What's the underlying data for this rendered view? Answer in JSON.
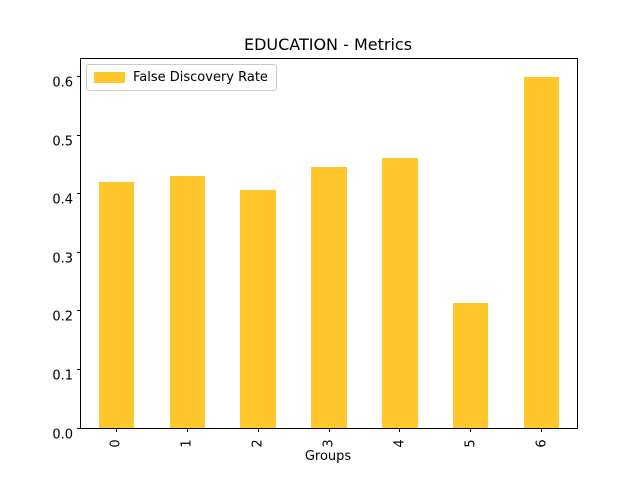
{
  "chart_data": {
    "type": "bar",
    "title": "EDUCATION - Metrics",
    "xlabel": "Groups",
    "ylabel": "",
    "categories": [
      "0",
      "1",
      "2",
      "3",
      "4",
      "5",
      "6"
    ],
    "series": [
      {
        "name": "False Discovery Rate",
        "color": "#FFC72C",
        "values": [
          0.42,
          0.43,
          0.407,
          0.446,
          0.461,
          0.214,
          0.6
        ]
      }
    ],
    "ylim": [
      0,
      0.63
    ],
    "yticks": [
      "0.0",
      "0.1",
      "0.2",
      "0.3",
      "0.4",
      "0.5",
      "0.6"
    ],
    "bar_width_fraction": 0.5,
    "grid": false,
    "legend_position": "upper left",
    "colors": {
      "background": "#ffffff",
      "axis": "#000000",
      "legend_border": "#cccccc"
    }
  }
}
